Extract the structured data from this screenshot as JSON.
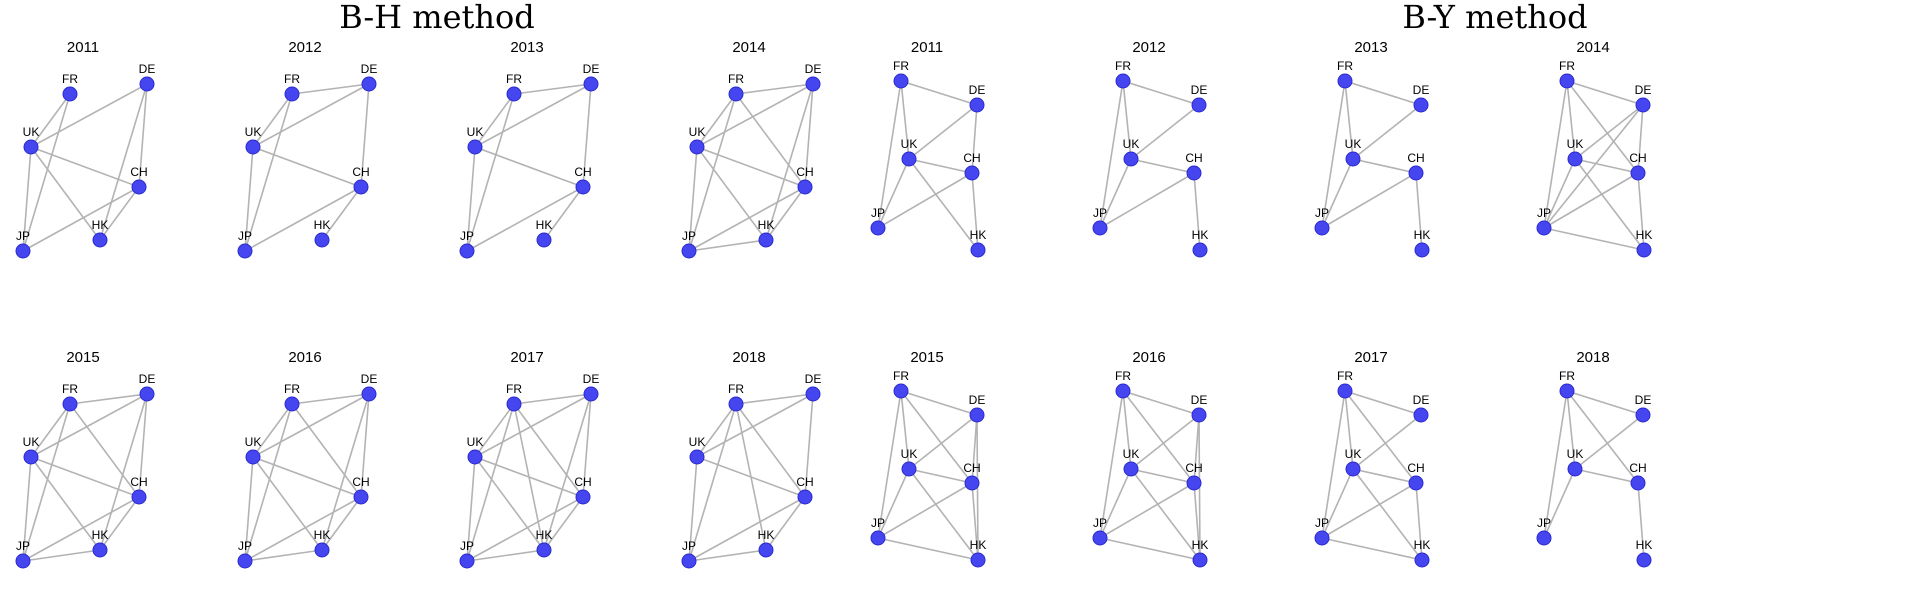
{
  "methods": [
    {
      "title": "B-H method",
      "panels": [
        {
          "year": "2011",
          "edges": [
            [
              "FR",
              "UK"
            ],
            [
              "FR",
              "JP"
            ],
            [
              "DE",
              "UK"
            ],
            [
              "DE",
              "CH"
            ],
            [
              "DE",
              "HK"
            ],
            [
              "UK",
              "CH"
            ],
            [
              "UK",
              "HK"
            ],
            [
              "UK",
              "JP"
            ],
            [
              "CH",
              "JP"
            ],
            [
              "CH",
              "HK"
            ]
          ]
        },
        {
          "year": "2012",
          "edges": [
            [
              "FR",
              "UK"
            ],
            [
              "FR",
              "DE"
            ],
            [
              "FR",
              "JP"
            ],
            [
              "DE",
              "UK"
            ],
            [
              "DE",
              "CH"
            ],
            [
              "UK",
              "CH"
            ],
            [
              "UK",
              "JP"
            ],
            [
              "CH",
              "JP"
            ],
            [
              "CH",
              "HK"
            ]
          ]
        },
        {
          "year": "2013",
          "edges": [
            [
              "FR",
              "UK"
            ],
            [
              "FR",
              "DE"
            ],
            [
              "FR",
              "JP"
            ],
            [
              "DE",
              "UK"
            ],
            [
              "DE",
              "CH"
            ],
            [
              "UK",
              "CH"
            ],
            [
              "UK",
              "JP"
            ],
            [
              "CH",
              "JP"
            ],
            [
              "CH",
              "HK"
            ]
          ]
        },
        {
          "year": "2014",
          "edges": [
            [
              "FR",
              "DE"
            ],
            [
              "FR",
              "UK"
            ],
            [
              "FR",
              "JP"
            ],
            [
              "FR",
              "CH"
            ],
            [
              "DE",
              "UK"
            ],
            [
              "DE",
              "CH"
            ],
            [
              "DE",
              "HK"
            ],
            [
              "UK",
              "CH"
            ],
            [
              "UK",
              "HK"
            ],
            [
              "UK",
              "JP"
            ],
            [
              "CH",
              "JP"
            ],
            [
              "CH",
              "HK"
            ],
            [
              "JP",
              "HK"
            ]
          ]
        }
      ]
    },
    {
      "title": "B-Y method",
      "panels": [
        {
          "year": "2011",
          "edges": [
            [
              "FR",
              "DE"
            ],
            [
              "FR",
              "UK"
            ],
            [
              "FR",
              "JP"
            ],
            [
              "DE",
              "UK"
            ],
            [
              "DE",
              "CH"
            ],
            [
              "UK",
              "CH"
            ],
            [
              "UK",
              "JP"
            ],
            [
              "UK",
              "HK"
            ],
            [
              "CH",
              "HK"
            ],
            [
              "CH",
              "JP"
            ]
          ]
        },
        {
          "year": "2012",
          "edges": [
            [
              "FR",
              "DE"
            ],
            [
              "FR",
              "UK"
            ],
            [
              "FR",
              "JP"
            ],
            [
              "DE",
              "UK"
            ],
            [
              "UK",
              "CH"
            ],
            [
              "UK",
              "JP"
            ],
            [
              "CH",
              "JP"
            ],
            [
              "CH",
              "HK"
            ]
          ]
        },
        {
          "year": "2013",
          "edges": [
            [
              "FR",
              "DE"
            ],
            [
              "FR",
              "UK"
            ],
            [
              "FR",
              "JP"
            ],
            [
              "DE",
              "UK"
            ],
            [
              "UK",
              "CH"
            ],
            [
              "UK",
              "JP"
            ],
            [
              "CH",
              "JP"
            ],
            [
              "CH",
              "HK"
            ]
          ]
        },
        {
          "year": "2014",
          "edges": [
            [
              "FR",
              "DE"
            ],
            [
              "FR",
              "UK"
            ],
            [
              "FR",
              "JP"
            ],
            [
              "FR",
              "CH"
            ],
            [
              "DE",
              "UK"
            ],
            [
              "DE",
              "CH"
            ],
            [
              "UK",
              "CH"
            ],
            [
              "UK",
              "JP"
            ],
            [
              "UK",
              "HK"
            ],
            [
              "CH",
              "JP"
            ],
            [
              "CH",
              "HK"
            ],
            [
              "JP",
              "HK"
            ],
            [
              "DE",
              "JP"
            ]
          ]
        }
      ]
    }
  ],
  "panels_row2": [
    [
      {
        "year": "2015",
        "edges": [
          [
            "FR",
            "DE"
          ],
          [
            "FR",
            "UK"
          ],
          [
            "FR",
            "JP"
          ],
          [
            "FR",
            "CH"
          ],
          [
            "DE",
            "UK"
          ],
          [
            "DE",
            "CH"
          ],
          [
            "DE",
            "HK"
          ],
          [
            "UK",
            "CH"
          ],
          [
            "UK",
            "HK"
          ],
          [
            "UK",
            "JP"
          ],
          [
            "CH",
            "JP"
          ],
          [
            "CH",
            "HK"
          ],
          [
            "JP",
            "HK"
          ]
        ]
      },
      {
        "year": "2016",
        "edges": [
          [
            "FR",
            "DE"
          ],
          [
            "FR",
            "UK"
          ],
          [
            "FR",
            "JP"
          ],
          [
            "FR",
            "CH"
          ],
          [
            "DE",
            "UK"
          ],
          [
            "DE",
            "CH"
          ],
          [
            "DE",
            "HK"
          ],
          [
            "UK",
            "CH"
          ],
          [
            "UK",
            "HK"
          ],
          [
            "UK",
            "JP"
          ],
          [
            "CH",
            "JP"
          ],
          [
            "CH",
            "HK"
          ],
          [
            "JP",
            "HK"
          ]
        ]
      },
      {
        "year": "2017",
        "edges": [
          [
            "FR",
            "DE"
          ],
          [
            "FR",
            "UK"
          ],
          [
            "FR",
            "JP"
          ],
          [
            "FR",
            "CH"
          ],
          [
            "FR",
            "HK"
          ],
          [
            "DE",
            "UK"
          ],
          [
            "DE",
            "CH"
          ],
          [
            "DE",
            "HK"
          ],
          [
            "UK",
            "CH"
          ],
          [
            "UK",
            "HK"
          ],
          [
            "UK",
            "JP"
          ],
          [
            "CH",
            "JP"
          ],
          [
            "CH",
            "HK"
          ],
          [
            "JP",
            "HK"
          ]
        ]
      },
      {
        "year": "2018",
        "edges": [
          [
            "FR",
            "DE"
          ],
          [
            "FR",
            "UK"
          ],
          [
            "FR",
            "JP"
          ],
          [
            "FR",
            "CH"
          ],
          [
            "FR",
            "HK"
          ],
          [
            "DE",
            "UK"
          ],
          [
            "DE",
            "CH"
          ],
          [
            "UK",
            "CH"
          ],
          [
            "UK",
            "JP"
          ],
          [
            "CH",
            "JP"
          ],
          [
            "CH",
            "HK"
          ],
          [
            "JP",
            "HK"
          ]
        ]
      }
    ],
    [
      {
        "year": "2015",
        "edges": [
          [
            "FR",
            "DE"
          ],
          [
            "FR",
            "UK"
          ],
          [
            "FR",
            "JP"
          ],
          [
            "FR",
            "CH"
          ],
          [
            "DE",
            "UK"
          ],
          [
            "DE",
            "CH"
          ],
          [
            "DE",
            "HK"
          ],
          [
            "UK",
            "CH"
          ],
          [
            "UK",
            "JP"
          ],
          [
            "UK",
            "HK"
          ],
          [
            "CH",
            "HK"
          ],
          [
            "CH",
            "JP"
          ],
          [
            "JP",
            "HK"
          ]
        ]
      },
      {
        "year": "2016",
        "edges": [
          [
            "FR",
            "DE"
          ],
          [
            "FR",
            "UK"
          ],
          [
            "FR",
            "JP"
          ],
          [
            "FR",
            "CH"
          ],
          [
            "DE",
            "UK"
          ],
          [
            "DE",
            "CH"
          ],
          [
            "DE",
            "HK"
          ],
          [
            "UK",
            "CH"
          ],
          [
            "UK",
            "JP"
          ],
          [
            "UK",
            "HK"
          ],
          [
            "CH",
            "HK"
          ],
          [
            "CH",
            "JP"
          ],
          [
            "JP",
            "HK"
          ]
        ]
      },
      {
        "year": "2017",
        "edges": [
          [
            "FR",
            "DE"
          ],
          [
            "FR",
            "UK"
          ],
          [
            "FR",
            "JP"
          ],
          [
            "FR",
            "CH"
          ],
          [
            "DE",
            "UK"
          ],
          [
            "UK",
            "CH"
          ],
          [
            "UK",
            "JP"
          ],
          [
            "UK",
            "HK"
          ],
          [
            "CH",
            "HK"
          ],
          [
            "CH",
            "JP"
          ],
          [
            "JP",
            "HK"
          ]
        ]
      },
      {
        "year": "2018",
        "edges": [
          [
            "FR",
            "DE"
          ],
          [
            "FR",
            "UK"
          ],
          [
            "FR",
            "JP"
          ],
          [
            "FR",
            "CH"
          ],
          [
            "DE",
            "UK"
          ],
          [
            "UK",
            "CH"
          ],
          [
            "UK",
            "JP"
          ],
          [
            "CH",
            "HK"
          ]
        ]
      }
    ]
  ],
  "node_labels": {
    "FR": "FR",
    "DE": "DE",
    "UK": "UK",
    "CH": "CH",
    "JP": "JP",
    "HK": "HK"
  },
  "colors": {
    "node": "#4646f0",
    "edge": "#b3b3b3"
  }
}
